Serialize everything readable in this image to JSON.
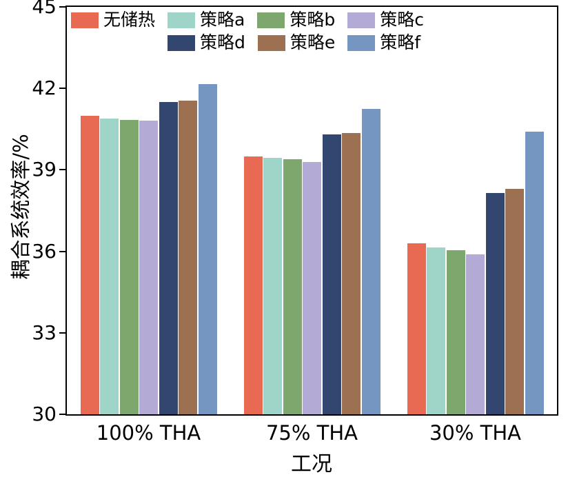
{
  "chart_data": {
    "type": "bar",
    "title": "",
    "xlabel": "工况",
    "ylabel": "耦合系统效率/%",
    "ylim": [
      30,
      45
    ],
    "yticks": [
      30,
      33,
      36,
      39,
      42,
      45
    ],
    "categories": [
      "100% THA",
      "75% THA",
      "30% THA"
    ],
    "series": [
      {
        "name": "无储热",
        "color": "#E96A52",
        "values": [
          41.0,
          39.5,
          36.3
        ]
      },
      {
        "name": "策略a",
        "color": "#9FD4C8",
        "values": [
          40.9,
          39.45,
          36.15
        ]
      },
      {
        "name": "策略b",
        "color": "#7EA76D",
        "values": [
          40.85,
          39.4,
          36.05
        ]
      },
      {
        "name": "策略c",
        "color": "#B3AAD5",
        "values": [
          40.8,
          39.3,
          35.9
        ]
      },
      {
        "name": "策略d",
        "color": "#33466F",
        "values": [
          41.5,
          40.3,
          38.15
        ]
      },
      {
        "name": "策略e",
        "color": "#9D7051",
        "values": [
          41.55,
          40.35,
          38.3
        ]
      },
      {
        "name": "策略f",
        "color": "#7496C1",
        "values": [
          42.15,
          41.25,
          40.4
        ]
      }
    ],
    "legend_rows": [
      [
        "无储热",
        "策略a",
        "策略b",
        "策略c"
      ],
      [
        "策略d",
        "策略e",
        "策略f"
      ]
    ],
    "legend_position": "top-left-inside",
    "grid": false,
    "axis_color": "#000000"
  }
}
